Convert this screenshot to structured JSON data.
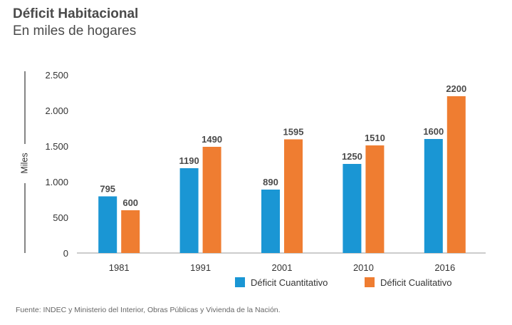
{
  "chart_data": {
    "type": "bar",
    "title": "Déficit Habitacional",
    "subtitle": "En miles de hogares",
    "ylabel": "Miles",
    "xlabel": "",
    "categories": [
      "1981",
      "1991",
      "2001",
      "2010",
      "2016"
    ],
    "series": [
      {
        "name": "Déficit Cuantitativo",
        "color": "#1a96d4",
        "values": [
          795,
          1190,
          890,
          1250,
          1600
        ]
      },
      {
        "name": "Déficit Cualitativo",
        "color": "#ef7d31",
        "values": [
          600,
          1490,
          1595,
          1510,
          2200
        ]
      }
    ],
    "ylim": [
      0,
      2500
    ],
    "yticks": [
      0,
      500,
      1000,
      1500,
      2000,
      2500
    ],
    "ytick_labels": [
      "0",
      "500",
      "1.000",
      "1.500",
      "2.000",
      "2.500"
    ],
    "grid": false,
    "legend": "bottom-right"
  },
  "source": "Fuente: INDEC y Ministerio del Interior, Obras Públicas y Vivienda de la Nación."
}
